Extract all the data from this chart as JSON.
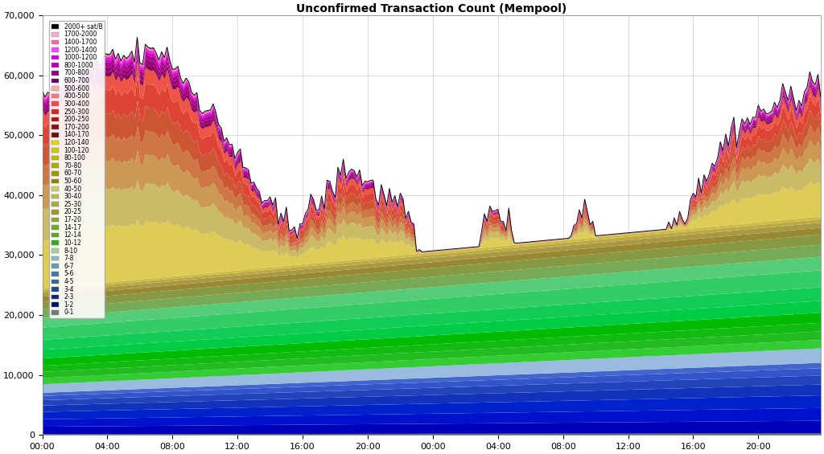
{
  "title": "Unconfirmed Transaction Count (Mempool)",
  "title_fontsize": 10,
  "ylim": [
    0,
    70000
  ],
  "yticks": [
    0,
    10000,
    20000,
    30000,
    40000,
    50000,
    60000,
    70000
  ],
  "xtick_labels": [
    "00:00",
    "04:00",
    "08:00",
    "12:00",
    "16:00",
    "20:00",
    "00:00",
    "04:00",
    "08:00",
    "12:00",
    "16:00",
    "20:00"
  ],
  "background_color": "#ffffff",
  "legend_labels_top": [
    "2000+ sat/B",
    "1700-2000",
    "1400-1700",
    "1200-1400",
    "1000-1200",
    "800-1000",
    "700-800",
    "600-700",
    "500-600",
    "400-500",
    "300-400",
    "250-300",
    "200-250",
    "170-200",
    "140-170",
    "120-140",
    "100-120",
    "80-100",
    "70-80",
    "60-70",
    "50-60",
    "40-50",
    "30-40",
    "25-30",
    "20-25",
    "17-20",
    "14-17",
    "12-14",
    "10-12",
    "8-10",
    "7-8",
    "6-7",
    "5-6",
    "4-5",
    "3-4",
    "2-3",
    "1-2",
    "0-1"
  ],
  "legend_colors_top": [
    "#000000",
    "#ffaacc",
    "#ff66aa",
    "#ff44ff",
    "#dd00dd",
    "#bb00bb",
    "#880088",
    "#660066",
    "#ffaaaa",
    "#ff7777",
    "#ff4444",
    "#dd2222",
    "#bb1111",
    "#881111",
    "#661111",
    "#dddd00",
    "#cccc00",
    "#bbbb00",
    "#aaaa00",
    "#999900",
    "#888800",
    "#cccc66",
    "#bbbb55",
    "#aaaa44",
    "#999933",
    "#88aa33",
    "#77aa22",
    "#55aa22",
    "#33aa22",
    "#aaccaa",
    "#88bbcc",
    "#6699bb",
    "#4477aa",
    "#336699",
    "#224488",
    "#112277",
    "#001166",
    "#777777"
  ],
  "seed": 42
}
